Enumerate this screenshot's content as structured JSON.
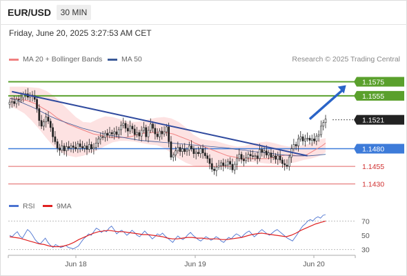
{
  "header": {
    "symbol": "EUR/USD",
    "timeframe": "30 MIN",
    "datetime": "Friday, June 20, 2025 3:27:53 AM CET",
    "copyright": "Research © 2025 Trading Central"
  },
  "legend": {
    "ma20": "MA 20 + Bollinger Bands",
    "ma50": "MA 50",
    "rsi": "RSI",
    "ma9": "9MA"
  },
  "colors": {
    "ma20": "#f08080",
    "ma50": "#3b5998",
    "bollinger_fill": "#fde2e2",
    "resistance": "#5aa02c",
    "support_blue": "#3d7bd9",
    "support_red": "#e06060",
    "trendline": "#2f4a9e",
    "current_price": "#222222",
    "rsi_line": "#4a72d0",
    "rsi_ma": "#e02020",
    "candle_up": "#ffffff",
    "candle_down": "#222222"
  },
  "chart_data": [
    {
      "type": "candlestick",
      "title": "EUR/USD",
      "timeframe": "30 MIN",
      "x_tick_labels": [
        "Jun 18",
        "Jun 19",
        "Jun 20"
      ],
      "ylim": [
        1.1415,
        1.1595
      ],
      "series_closes": [
        1.1546,
        1.1547,
        1.1544,
        1.155,
        1.1549,
        1.1552,
        1.1557,
        1.1558,
        1.1553,
        1.1556,
        1.1555,
        1.155,
        1.1537,
        1.152,
        1.1512,
        1.1518,
        1.1525,
        1.1519,
        1.151,
        1.1497,
        1.149,
        1.1481,
        1.1478,
        1.1484,
        1.1477,
        1.1483,
        1.1481,
        1.1484,
        1.1482,
        1.148,
        1.1487,
        1.1483,
        1.1481,
        1.1484,
        1.1479,
        1.1486,
        1.148,
        1.1482,
        1.1488,
        1.1494,
        1.1497,
        1.1496,
        1.1502,
        1.1499,
        1.1503,
        1.1501,
        1.1504,
        1.15,
        1.1507,
        1.1513,
        1.1516,
        1.1509,
        1.1505,
        1.1512,
        1.1508,
        1.15,
        1.1503,
        1.1498,
        1.1506,
        1.151,
        1.1497,
        1.1506,
        1.1515,
        1.1509,
        1.1501,
        1.1497,
        1.1505,
        1.1501,
        1.1504,
        1.1511,
        1.149,
        1.1468,
        1.1471,
        1.1477,
        1.1482,
        1.1476,
        1.148,
        1.1476,
        1.1478,
        1.1484,
        1.148,
        1.1473,
        1.1475,
        1.1473,
        1.148,
        1.1474,
        1.147,
        1.1466,
        1.1459,
        1.1451,
        1.1449,
        1.1454,
        1.1456,
        1.146,
        1.1456,
        1.1457,
        1.1462,
        1.1458,
        1.145,
        1.1458,
        1.1466,
        1.1472,
        1.1465,
        1.1463,
        1.1467,
        1.1472,
        1.147,
        1.1469,
        1.147,
        1.1466,
        1.1479,
        1.1475,
        1.1477,
        1.1471,
        1.1474,
        1.1468,
        1.147,
        1.1465,
        1.147,
        1.1464,
        1.1459,
        1.1457,
        1.1455,
        1.1468,
        1.148,
        1.1486,
        1.1484,
        1.1494,
        1.1497,
        1.1491,
        1.1494,
        1.1495,
        1.1492,
        1.1494,
        1.1491,
        1.1498,
        1.15,
        1.1512,
        1.1517,
        1.1522
      ],
      "ma20_closes": [
        1.1551,
        1.1551,
        1.1551,
        1.155,
        1.1549,
        1.1548,
        1.1546,
        1.1544,
        1.1541,
        1.1538,
        1.1535,
        1.1532,
        1.1528,
        1.1524,
        1.1521,
        1.1518,
        1.1515,
        1.1513,
        1.1511,
        1.1509,
        1.1507,
        1.1505,
        1.1503,
        1.1501,
        1.15,
        1.1499,
        1.1498,
        1.1497,
        1.1496,
        1.1496,
        1.1496,
        1.1496,
        1.1496,
        1.1497,
        1.1498,
        1.15,
        1.1501,
        1.1502,
        1.1503,
        1.1503,
        1.1503,
        1.1503,
        1.1503,
        1.1503,
        1.1502,
        1.1501,
        1.1499,
        1.1497,
        1.1495,
        1.1493,
        1.1491,
        1.1488,
        1.1486,
        1.1484,
        1.1482,
        1.148,
        1.1478,
        1.1476,
        1.1474,
        1.1472,
        1.147,
        1.1469,
        1.1468,
        1.1467,
        1.1466,
        1.1466,
        1.1466,
        1.1466,
        1.1466,
        1.1466,
        1.1466,
        1.1466,
        1.1467,
        1.1468,
        1.1469,
        1.147,
        1.1471,
        1.1471,
        1.1471,
        1.147,
        1.147,
        1.147,
        1.1472,
        1.1475,
        1.1478,
        1.1481,
        1.1484,
        1.1488
      ],
      "ma50_closes": [
        1.1552,
        1.1548,
        1.1543,
        1.1538,
        1.1532,
        1.1526,
        1.1521,
        1.1517,
        1.1513,
        1.1509,
        1.1506,
        1.1503,
        1.15,
        1.1498,
        1.1496,
        1.1494,
        1.1492,
        1.1491,
        1.149,
        1.1489,
        1.1488,
        1.1487,
        1.1486,
        1.1485,
        1.1484,
        1.1483,
        1.1482,
        1.1481,
        1.1479,
        1.1478,
        1.1476,
        1.1475,
        1.1474,
        1.1472,
        1.1471,
        1.147,
        1.147,
        1.147,
        1.1471,
        1.1472
      ],
      "bollinger_upper": [
        1.1568,
        1.1568,
        1.1568,
        1.1567,
        1.1566,
        1.1562,
        1.1555,
        1.1545,
        1.1535,
        1.1525,
        1.1518,
        1.1517,
        1.1522,
        1.1526,
        1.1525,
        1.1522,
        1.1519,
        1.1518,
        1.1519,
        1.1522,
        1.1524,
        1.1525,
        1.1523,
        1.1518,
        1.151,
        1.15,
        1.1494,
        1.1492,
        1.1491,
        1.1488,
        1.1485,
        1.1483,
        1.1484,
        1.1487,
        1.1489,
        1.149,
        1.1488,
        1.1485,
        1.1483,
        1.1484,
        1.1485,
        1.1488,
        1.1493,
        1.1495
      ],
      "bollinger_lower": [
        1.154,
        1.1536,
        1.153,
        1.152,
        1.1508,
        1.1495,
        1.1483,
        1.1475,
        1.147,
        1.1468,
        1.147,
        1.1474,
        1.1478,
        1.1484,
        1.1489,
        1.1491,
        1.1491,
        1.149,
        1.1488,
        1.1486,
        1.1485,
        1.1481,
        1.1474,
        1.1466,
        1.146,
        1.1456,
        1.1455,
        1.1455,
        1.1456,
        1.1458,
        1.1461,
        1.1462,
        1.1462,
        1.1461,
        1.146,
        1.1459,
        1.1458,
        1.1458,
        1.1459,
        1.1461,
        1.1464,
        1.1466,
        1.1469,
        1.1475
      ],
      "trendline": {
        "from": [
          1,
          1.1561
        ],
        "to": [
          131,
          1.147
        ]
      },
      "forecast_arrow": {
        "from": [
          132,
          1.1522
        ],
        "to": [
          148,
          1.157
        ]
      },
      "resistance_levels": [
        1.1575,
        1.1555
      ],
      "current_price": 1.1521,
      "support_levels": [
        1.148,
        1.1455,
        1.143
      ],
      "price_labels": [
        "1.1575",
        "1.1555",
        "1.1521",
        "1.1480",
        "1.1455",
        "1.1430"
      ]
    },
    {
      "type": "line",
      "title": "RSI",
      "series": [
        {
          "name": "RSI",
          "values": [
            50,
            48,
            52,
            55,
            49,
            46,
            52,
            58,
            55,
            50,
            44,
            40,
            38,
            42,
            46,
            40,
            36,
            33,
            37,
            35,
            33,
            34,
            36,
            33,
            32,
            31,
            33,
            35,
            40,
            45,
            48,
            52,
            50,
            55,
            60,
            58,
            54,
            57,
            55,
            60,
            63,
            58,
            52,
            55,
            57,
            54,
            50,
            53,
            57,
            54,
            50,
            48,
            52,
            56,
            52,
            49,
            45,
            48,
            52,
            50,
            53,
            49,
            46,
            43,
            40,
            45,
            49,
            46,
            44,
            47,
            51,
            54,
            50,
            47,
            44,
            42,
            45,
            48,
            46,
            43,
            45,
            48,
            46,
            42,
            40,
            44,
            47,
            45,
            49,
            52,
            50,
            47,
            51,
            54,
            56,
            52,
            48,
            51,
            55,
            58,
            55,
            52,
            50,
            53,
            56,
            58,
            55,
            52,
            49,
            46,
            44,
            42,
            47,
            52,
            58,
            63,
            66,
            70,
            72,
            70,
            74,
            76,
            74,
            78,
            79
          ]
        },
        {
          "name": "9MA",
          "values": [
            48,
            47,
            46,
            44,
            42,
            40,
            38,
            37,
            35,
            34,
            34,
            35,
            37,
            40,
            44,
            47,
            50,
            53,
            55,
            56,
            57,
            56,
            55,
            55,
            54,
            53,
            52,
            51,
            51,
            50,
            49,
            48,
            46,
            45,
            45,
            46,
            47,
            47,
            46,
            46,
            45,
            45,
            45,
            44,
            44,
            45,
            46,
            47,
            49,
            51,
            52,
            53,
            52,
            51,
            50,
            49,
            48,
            50,
            53,
            57,
            60,
            63,
            66,
            68,
            70
          ]
        }
      ],
      "ylim": [
        20,
        80
      ],
      "y_tick_labels": [
        "70",
        "50",
        "30"
      ],
      "reference_levels": [
        70,
        30
      ]
    }
  ]
}
